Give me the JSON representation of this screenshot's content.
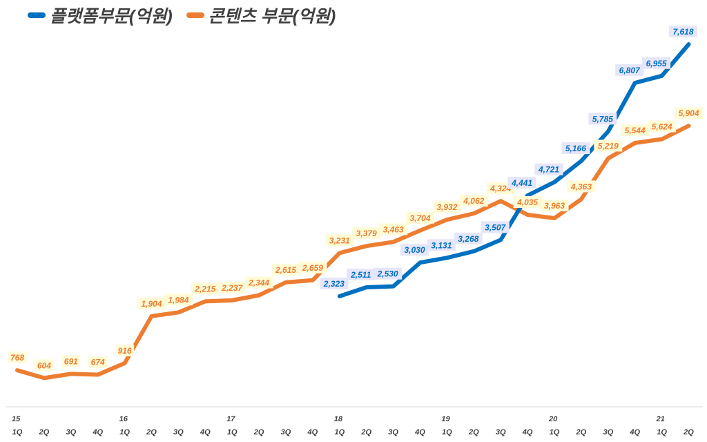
{
  "chart_data": {
    "type": "line",
    "title": "",
    "xlabel": "",
    "ylabel": "",
    "ylim": [
      0,
      8000
    ],
    "grid": false,
    "legend_position": "top-left",
    "categories": [
      "15 1Q",
      "15 2Q",
      "15 3Q",
      "15 4Q",
      "16 1Q",
      "16 2Q",
      "16 3Q",
      "16 4Q",
      "17 1Q",
      "17 2Q",
      "17 3Q",
      "17 4Q",
      "18 1Q",
      "18 2Q",
      "18 3Q",
      "18 4Q",
      "19 1Q",
      "19 2Q",
      "19 3Q",
      "19 4Q",
      "20 1Q",
      "20 2Q",
      "20 3Q",
      "20 4Q",
      "21 1Q",
      "21 2Q"
    ],
    "year_labels": [
      "15",
      "",
      "",
      "",
      "16",
      "",
      "",
      "",
      "17",
      "",
      "",
      "",
      "18",
      "",
      "",
      "",
      "19",
      "",
      "",
      "",
      "20",
      "",
      "",
      "",
      "21",
      ""
    ],
    "quarter_labels": [
      "1Q",
      "2Q",
      "3Q",
      "4Q",
      "1Q",
      "2Q",
      "3Q",
      "4Q",
      "1Q",
      "2Q",
      "3Q",
      "4Q",
      "1Q",
      "2Q",
      "3Q",
      "4Q",
      "1Q",
      "2Q",
      "3Q",
      "4Q",
      "1Q",
      "2Q",
      "3Q",
      "4Q",
      "1Q",
      "2Q"
    ],
    "series": [
      {
        "name": "플랫폼부문(억원)",
        "color": "#0070C0",
        "label_bg": "#E6E6FA",
        "values": [
          null,
          null,
          null,
          null,
          null,
          null,
          null,
          null,
          null,
          null,
          null,
          null,
          2323,
          2511,
          2530,
          3030,
          3131,
          3268,
          3507,
          4441,
          4721,
          5166,
          5785,
          6807,
          6955,
          7618
        ]
      },
      {
        "name": "콘텐츠 부문(억원)",
        "color": "#ED7D31",
        "label_bg": "#FFFBD6",
        "values": [
          768,
          604,
          691,
          674,
          916,
          1904,
          1984,
          2215,
          2237,
          2344,
          2615,
          2659,
          3231,
          3379,
          3463,
          3704,
          3932,
          4062,
          4324,
          4035,
          3963,
          4363,
          5219,
          5544,
          5624,
          5904
        ]
      }
    ]
  }
}
